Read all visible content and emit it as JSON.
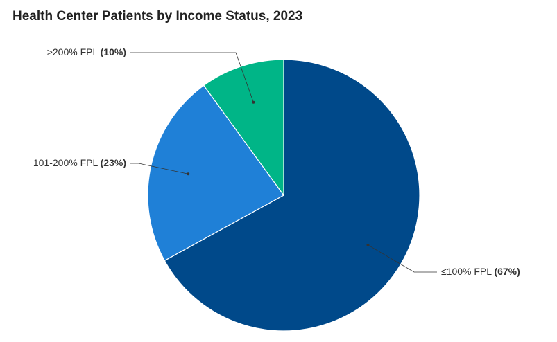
{
  "chart_data": {
    "type": "pie",
    "title": "Health Center Patients by Income Status, 2023",
    "categories": [
      "≤100% FPL",
      "101-200% FPL",
      ">200% FPL"
    ],
    "values": [
      67,
      23,
      10
    ],
    "value_labels": [
      "(67%)",
      "(23%)",
      "(10%)"
    ],
    "colors": [
      "#00498a",
      "#1f80d7",
      "#00b587"
    ]
  }
}
